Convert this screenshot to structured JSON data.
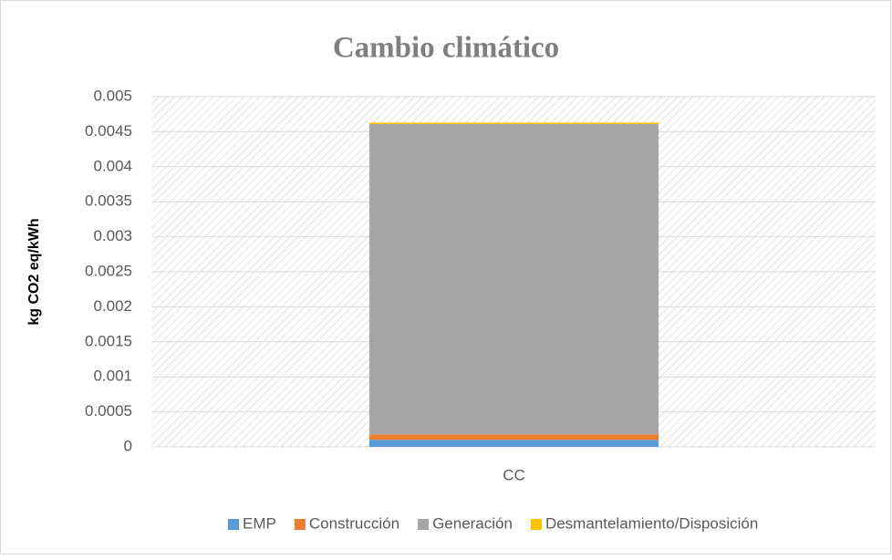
{
  "chart_data": {
    "type": "stacked_bar",
    "title": "Cambio climático",
    "y_label": "kg CO2 eq/kWh",
    "categories": [
      "CC"
    ],
    "series": [
      {
        "name": "EMP",
        "color": "#5b9bd5",
        "values": [
          0.0001
        ]
      },
      {
        "name": "Construcción",
        "color": "#ed7d31",
        "values": [
          8e-05
        ]
      },
      {
        "name": "Generación",
        "color": "#a5a5a5",
        "values": [
          0.00443
        ]
      },
      {
        "name": "Desmantelamiento/Disposición",
        "color": "#ffc000",
        "values": [
          2e-05
        ]
      }
    ],
    "ylim": [
      0,
      0.005
    ],
    "yticks": [
      0,
      0.0005,
      0.001,
      0.0015,
      0.002,
      0.0025,
      0.003,
      0.0035,
      0.004,
      0.0045,
      0.005
    ],
    "grid": true,
    "legend": "bottom"
  }
}
